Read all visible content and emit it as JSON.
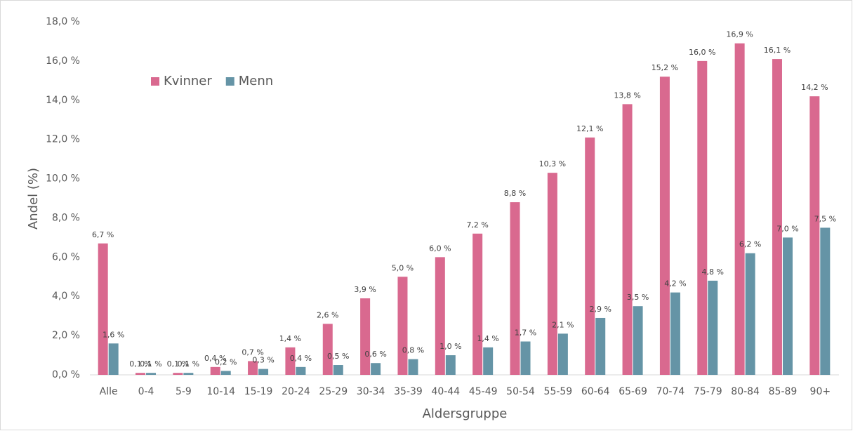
{
  "chart_data": {
    "type": "bar",
    "x_label": "Aldersgruppe",
    "y_label": "Andel (%)",
    "categories": [
      "Alle",
      "0-4",
      "5-9",
      "10-14",
      "15-19",
      "20-24",
      "25-29",
      "30-34",
      "35-39",
      "40-44",
      "45-49",
      "50-54",
      "55-59",
      "60-64",
      "65-69",
      "70-74",
      "75-79",
      "80-84",
      "85-89",
      "90+"
    ],
    "series": [
      {
        "name": "Kvinner",
        "color": "#d9698f",
        "values": [
          6.7,
          0.1,
          0.1,
          0.4,
          0.7,
          1.4,
          2.6,
          3.9,
          5.0,
          6.0,
          7.2,
          8.8,
          10.3,
          12.1,
          13.8,
          15.2,
          16.0,
          16.9,
          16.1,
          14.2
        ],
        "value_labels": [
          "6,7 %",
          "0,1 %",
          "0,1 %",
          "0,4 %",
          "0,7 %",
          "1,4 %",
          "2,6 %",
          "3,9 %",
          "5,0 %",
          "6,0 %",
          "7,2 %",
          "8,8 %",
          "10,3 %",
          "12,1 %",
          "13,8 %",
          "15,2 %",
          "16,0 %",
          "16,9 %",
          "16,1 %",
          "14,2 %"
        ]
      },
      {
        "name": "Menn",
        "color": "#6594a6",
        "values": [
          1.6,
          0.1,
          0.1,
          0.2,
          0.3,
          0.4,
          0.5,
          0.6,
          0.8,
          1.0,
          1.4,
          1.7,
          2.1,
          2.9,
          3.5,
          4.2,
          4.8,
          6.2,
          7.0,
          7.5
        ],
        "value_labels": [
          "1,6 %",
          "0,1 %",
          "0,1 %",
          "0,2 %",
          "0,3 %",
          "0,4 %",
          "0,5 %",
          "0,6 %",
          "0,8 %",
          "1,0 %",
          "1,4 %",
          "1,7 %",
          "2,1 %",
          "2,9 %",
          "3,5 %",
          "4,2 %",
          "4,8 %",
          "6,2 %",
          "7,0 %",
          "7,5 %"
        ]
      }
    ],
    "ylim": [
      0,
      18
    ],
    "yticks": [
      {
        "value": 0,
        "label": "0,0 %"
      },
      {
        "value": 2,
        "label": "2,0 %"
      },
      {
        "value": 4,
        "label": "4,0 %"
      },
      {
        "value": 6,
        "label": "6,0 %"
      },
      {
        "value": 8,
        "label": "8,0 %"
      },
      {
        "value": 10,
        "label": "10,0 %"
      },
      {
        "value": 12,
        "label": "12,0 %"
      },
      {
        "value": 14,
        "label": "14,0 %"
      },
      {
        "value": 16,
        "label": "16,0 %"
      },
      {
        "value": 18,
        "label": "18,0 %"
      }
    ],
    "grid": false,
    "legend": "upper left"
  }
}
